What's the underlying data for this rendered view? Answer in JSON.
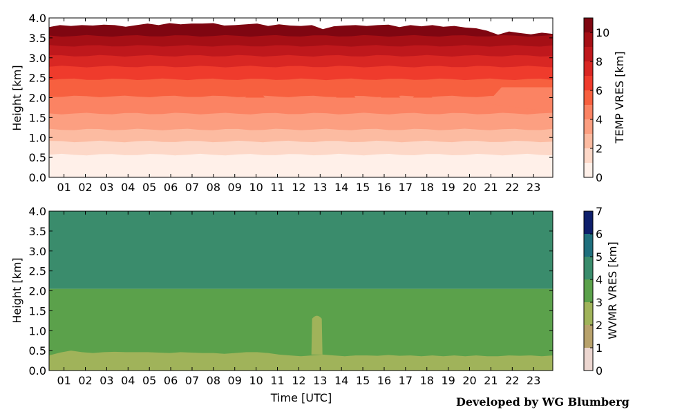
{
  "credit": "Developed by WG Blumberg",
  "chart_data": [
    {
      "type": "contour",
      "ylabel": "Height [km]",
      "xlabel": "",
      "x_ticks": [
        "01",
        "02",
        "03",
        "04",
        "05",
        "06",
        "07",
        "08",
        "09",
        "10",
        "11",
        "12",
        "13",
        "14",
        "15",
        "16",
        "17",
        "18",
        "19",
        "20",
        "21",
        "22",
        "23"
      ],
      "xlim": [
        0.3,
        23.9
      ],
      "ylim": [
        0,
        4
      ],
      "y_ticks": [
        "0.0",
        "0.5",
        "1.0",
        "1.5",
        "2.0",
        "2.5",
        "3.0",
        "3.5",
        "4.0"
      ],
      "colorbar": {
        "label": "TEMP VRES [km]",
        "ticks": [
          "0",
          "2",
          "4",
          "6",
          "8",
          "10"
        ],
        "range": [
          0,
          11
        ],
        "levels": [
          0,
          1,
          2,
          3,
          4,
          5,
          6,
          7,
          8,
          9,
          10,
          11
        ],
        "colors": [
          "#fff0e9",
          "#fdd8c8",
          "#fcbba1",
          "#fc9f81",
          "#fb8363",
          "#f7603f",
          "#ef3b2c",
          "#d92723",
          "#bf181c",
          "#a50f15",
          "#7f0611"
        ]
      },
      "band_tops_km": [
        0.57,
        0.9,
        1.2,
        1.6,
        2.03,
        2.46,
        2.78,
        3.05,
        3.3,
        3.55
      ],
      "data_top_km": [
        3.77,
        3.82,
        3.8,
        3.82,
        3.81,
        3.83,
        3.82,
        3.78,
        3.82,
        3.86,
        3.82,
        3.87,
        3.84,
        3.86,
        3.86,
        3.87,
        3.81,
        3.82,
        3.84,
        3.86,
        3.8,
        3.84,
        3.81,
        3.8,
        3.82,
        3.72,
        3.79,
        3.81,
        3.82,
        3.8,
        3.82,
        3.83,
        3.77,
        3.82,
        3.79,
        3.82,
        3.78,
        3.8,
        3.76,
        3.74,
        3.68,
        3.58,
        3.66,
        3.62,
        3.59,
        3.63,
        3.6
      ]
    },
    {
      "type": "contour",
      "ylabel": "Height [km]",
      "xlabel": "Time [UTC]",
      "x_ticks": [
        "01",
        "02",
        "03",
        "04",
        "05",
        "06",
        "07",
        "08",
        "09",
        "10",
        "11",
        "12",
        "13",
        "14",
        "15",
        "16",
        "17",
        "18",
        "19",
        "20",
        "21",
        "22",
        "23"
      ],
      "xlim": [
        0.3,
        23.9
      ],
      "ylim": [
        0,
        4
      ],
      "y_ticks": [
        "0.0",
        "0.5",
        "1.0",
        "1.5",
        "2.0",
        "2.5",
        "3.0",
        "3.5",
        "4.0"
      ],
      "colorbar": {
        "label": "WVMR VRES [km]",
        "ticks": [
          "0",
          "1",
          "2",
          "3",
          "4",
          "5",
          "6",
          "7"
        ],
        "range": [
          0,
          7
        ],
        "levels": [
          0,
          1,
          2,
          3,
          4,
          5,
          6,
          7
        ],
        "colors": [
          "#ecd6d0",
          "#b8a26c",
          "#a0b35a",
          "#5ba14b",
          "#3a8c6c",
          "#1f6f7d",
          "#0e1f6b"
        ]
      },
      "band_tops_km": [
        0.45,
        2.05
      ],
      "low_band_tops_km": [
        0.38,
        0.45,
        0.5,
        0.46,
        0.44,
        0.46,
        0.47,
        0.46,
        0.46,
        0.46,
        0.45,
        0.44,
        0.46,
        0.45,
        0.44,
        0.44,
        0.42,
        0.44,
        0.46,
        0.46,
        0.44,
        0.4,
        0.38,
        0.36,
        0.38,
        0.4,
        0.38,
        0.36,
        0.38,
        0.38,
        0.37,
        0.39,
        0.37,
        0.38,
        0.36,
        0.38,
        0.36,
        0.38,
        0.36,
        0.38,
        0.36,
        0.36,
        0.38,
        0.37,
        0.38,
        0.36,
        0.38
      ],
      "spike": {
        "time": 12.85,
        "peak_km": 1.45
      }
    }
  ]
}
